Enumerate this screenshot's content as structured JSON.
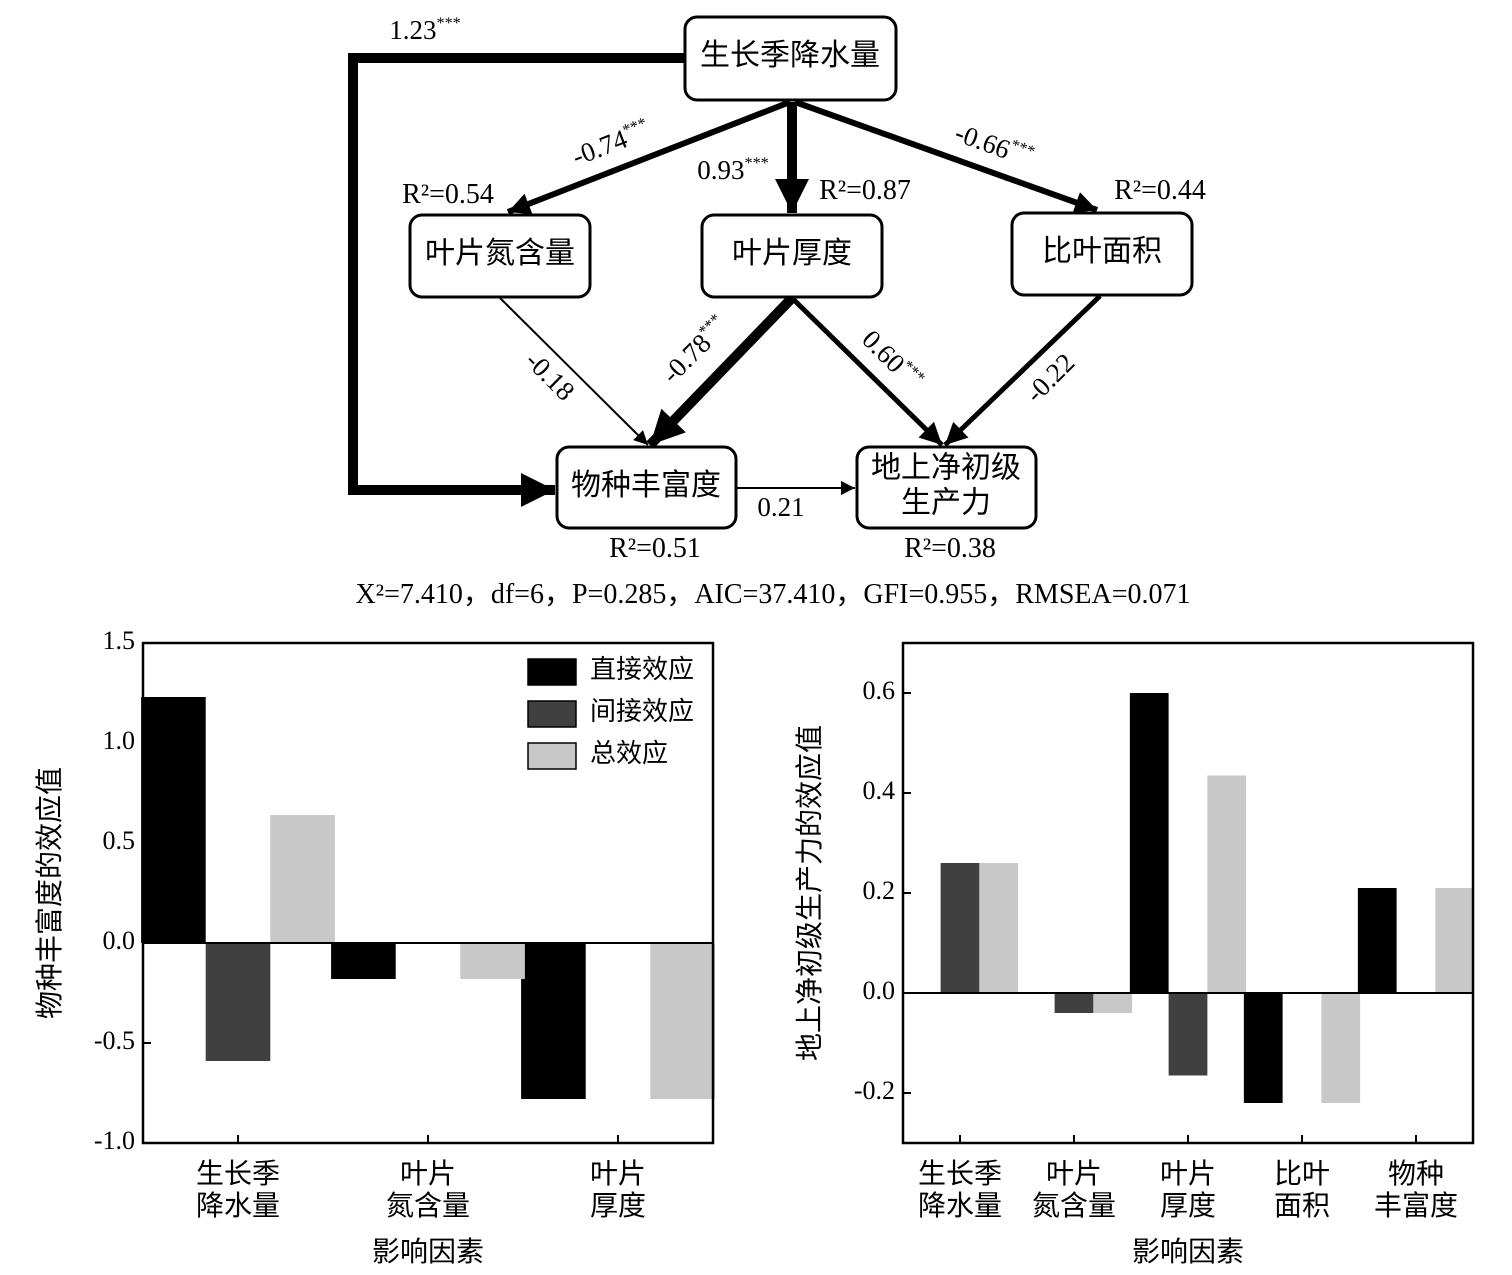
{
  "diagram": {
    "nodes": [
      {
        "label": "生长季降水量"
      },
      {
        "label": "叶片氮含量",
        "r2": "R²=0.54"
      },
      {
        "label": "叶片厚度",
        "r2": "R²=0.87"
      },
      {
        "label": "比叶面积",
        "r2": "R²=0.44"
      },
      {
        "label": "物种丰富度",
        "r2": "R²=0.51"
      },
      {
        "label": "地上净初级\n生产力",
        "r2": "R²=0.38"
      }
    ],
    "edges": [
      {
        "label": "1.23***"
      },
      {
        "label": "-0.74***"
      },
      {
        "label": "0.93***"
      },
      {
        "label": "-0.66***"
      },
      {
        "label": "-0.18"
      },
      {
        "label": "-0.78***"
      },
      {
        "label": "0.60***"
      },
      {
        "label": "-0.22"
      },
      {
        "label": "0.21"
      }
    ],
    "fit": "X²=7.410，df=6，P=0.285，AIC=37.410，GFI=0.955，RMSEA=0.071"
  },
  "chart_data": [
    {
      "type": "bar",
      "ylabel": "物种丰富度的效应值",
      "xlabel": "影响因素",
      "categories": [
        "生长季\n降水量",
        "叶片\n氮含量",
        "叶片\n厚度"
      ],
      "series": [
        {
          "name": "直接效应",
          "color": "#000000",
          "values": [
            1.23,
            -0.18,
            -0.78
          ]
        },
        {
          "name": "间接效应",
          "color": "#404040",
          "values": [
            -0.59,
            0,
            0
          ]
        },
        {
          "name": "总效应",
          "color": "#c8c8c8",
          "values": [
            0.64,
            -0.18,
            -0.78
          ]
        }
      ],
      "ylim": [
        -1,
        1.5
      ],
      "yticks": [
        {
          "value": -1,
          "label": "-1.0"
        },
        -0.5,
        {
          "value": 0,
          "label": "0.0"
        },
        0.5,
        {
          "value": 1,
          "label": "1.0"
        },
        1.5
      ],
      "legend": "upper right"
    },
    {
      "type": "bar",
      "ylabel": "地上净初级生产力的效应值",
      "xlabel": "影响因素",
      "categories": [
        "生长季\n降水量",
        "叶片\n氮含量",
        "叶片\n厚度",
        "比叶\n面积",
        "物种\n丰富度"
      ],
      "series": [
        {
          "color": "#000000",
          "values": [
            0,
            0,
            0.6,
            -0.22,
            0.21
          ]
        },
        {
          "color": "#404040",
          "values": [
            0.26,
            -0.04,
            -0.165,
            0,
            0
          ]
        },
        {
          "color": "#c8c8c8",
          "values": [
            0.26,
            -0.04,
            0.435,
            -0.22,
            0.21
          ]
        }
      ],
      "ylim": [
        -0.3,
        0.7
      ],
      "yticks": [
        -0.2,
        {
          "value": 0,
          "label": "0.0"
        },
        0.2,
        0.4,
        0.6
      ]
    }
  ]
}
